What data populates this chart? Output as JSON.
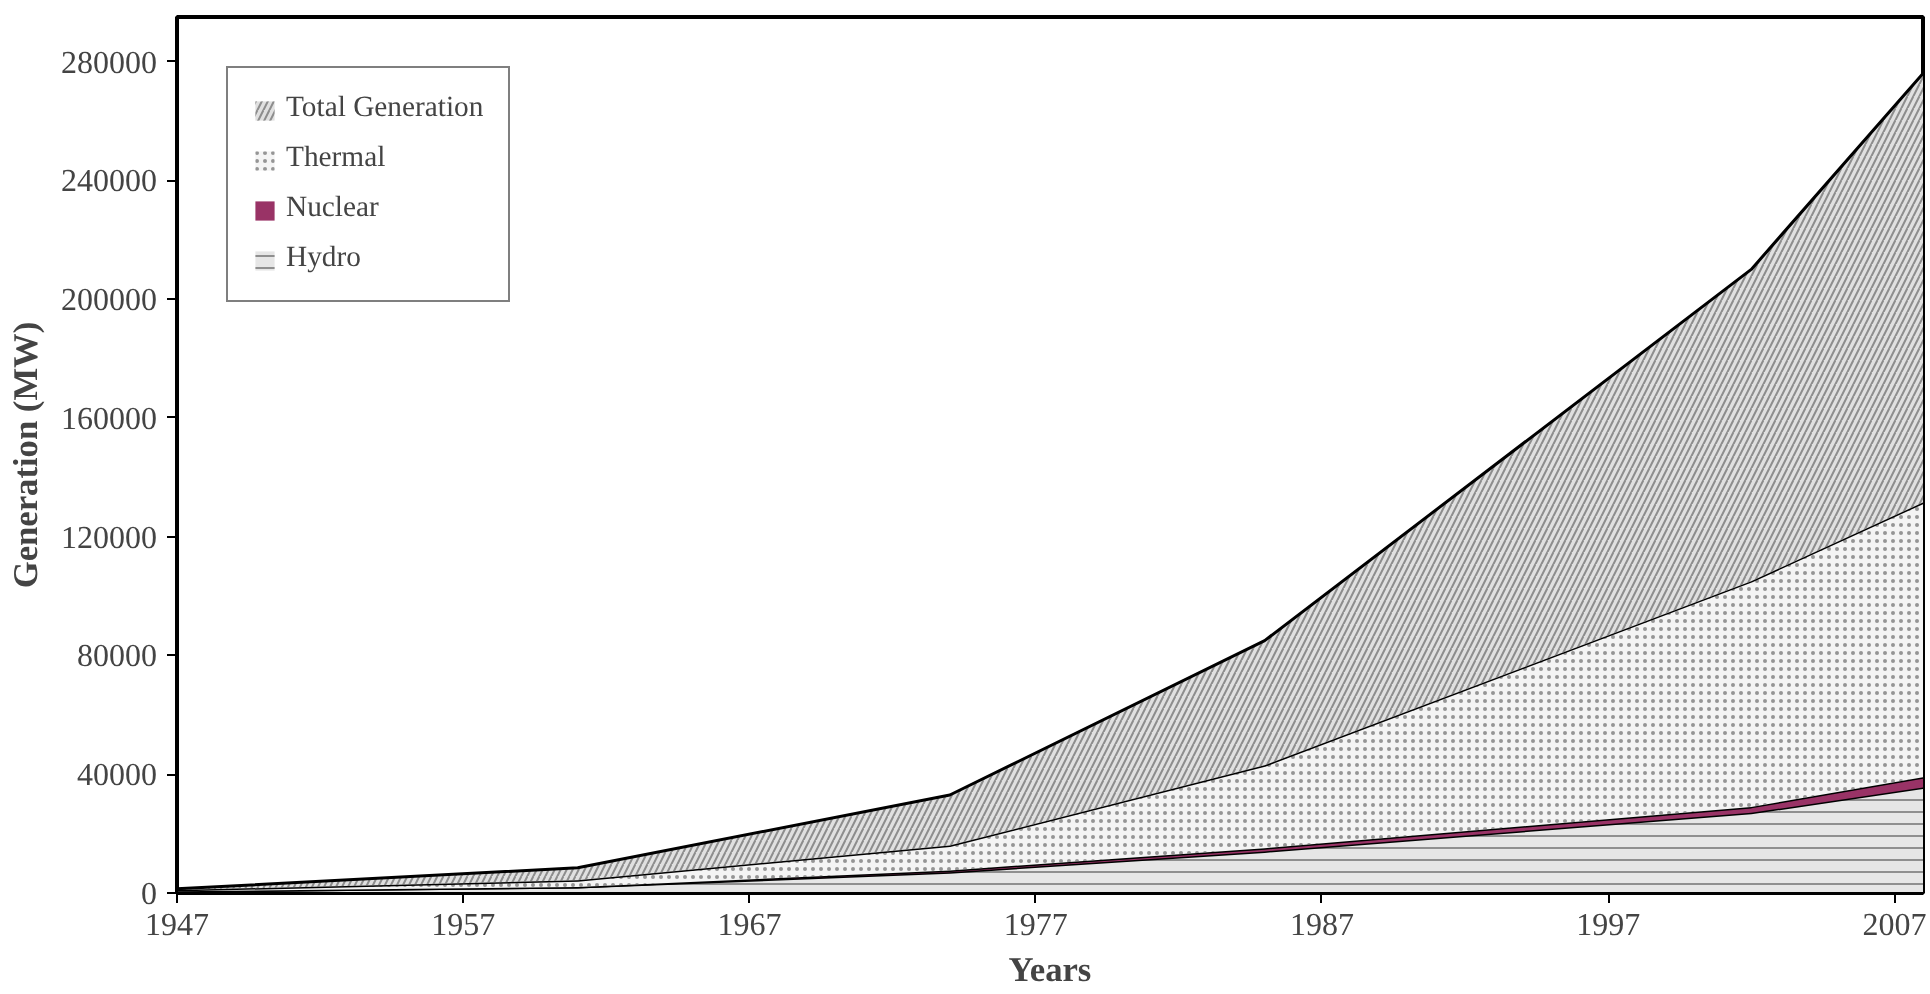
{
  "chart_data": {
    "type": "area",
    "stacked": true,
    "xlabel": "Years",
    "ylabel": "Generation (MW)",
    "x": [
      1947,
      1961,
      1974,
      1985,
      2002,
      2008
    ],
    "xlim": [
      1947,
      2008
    ],
    "xticks": [
      1947,
      1957,
      1967,
      1977,
      1987,
      1997,
      2007
    ],
    "ylim": [
      0,
      295000
    ],
    "yticks": [
      0,
      40000,
      80000,
      120000,
      160000,
      200000,
      240000,
      280000
    ],
    "grid": false,
    "legend": "top left",
    "series": [
      {
        "name": "Hydro",
        "color": "#e6e6e6",
        "values": [
          600,
          2000,
          7000,
          14000,
          27000,
          35500
        ]
      },
      {
        "name": "Nuclear",
        "color": "#993366",
        "values": [
          0,
          0,
          600,
          1100,
          2000,
          3500
        ]
      },
      {
        "name": "Thermal",
        "color": "#f4f4f4",
        "values": [
          400,
          2300,
          8400,
          27900,
          76000,
          92500
        ]
      },
      {
        "name": "Total Generation",
        "color": "#e0e0e0",
        "values": [
          400,
          4200,
          17000,
          42000,
          105000,
          144500
        ]
      }
    ]
  }
}
